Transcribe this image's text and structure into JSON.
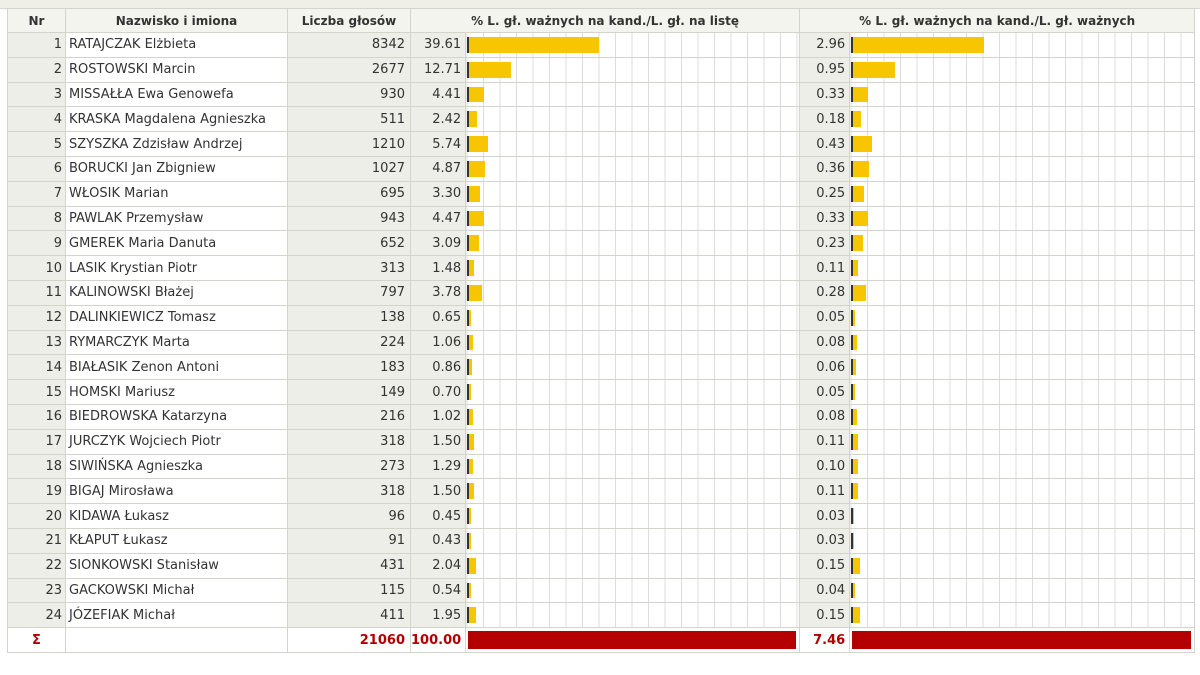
{
  "headers": {
    "nr": "Nr",
    "name": "Nazwisko i imiona",
    "votes": "Liczba głosów",
    "pct_list": "% L. gł. ważnych na kand./L. gł. na listę",
    "pct_valid": "% L. gł. ważnych na kand./L. gł. ważnych"
  },
  "colors": {
    "bar": "#f7c600",
    "total_bar": "#b40000",
    "total_text": "#b00000"
  },
  "rows": [
    {
      "nr": "1",
      "name": "RATAJCZAK Elżbieta",
      "votes": "8342",
      "pct_list": "39.61",
      "pct_valid": "2.96"
    },
    {
      "nr": "2",
      "name": "ROSTOWSKI Marcin",
      "votes": "2677",
      "pct_list": "12.71",
      "pct_valid": "0.95"
    },
    {
      "nr": "3",
      "name": "MISSAŁŁA Ewa Genowefa",
      "votes": "930",
      "pct_list": "4.41",
      "pct_valid": "0.33"
    },
    {
      "nr": "4",
      "name": "KRASKA Magdalena Agnieszka",
      "votes": "511",
      "pct_list": "2.42",
      "pct_valid": "0.18"
    },
    {
      "nr": "5",
      "name": "SZYSZKA Zdzisław Andrzej",
      "votes": "1210",
      "pct_list": "5.74",
      "pct_valid": "0.43"
    },
    {
      "nr": "6",
      "name": "BORUCKI Jan Zbigniew",
      "votes": "1027",
      "pct_list": "4.87",
      "pct_valid": "0.36"
    },
    {
      "nr": "7",
      "name": "WŁOSIK Marian",
      "votes": "695",
      "pct_list": "3.30",
      "pct_valid": "0.25"
    },
    {
      "nr": "8",
      "name": "PAWLAK Przemysław",
      "votes": "943",
      "pct_list": "4.47",
      "pct_valid": "0.33"
    },
    {
      "nr": "9",
      "name": "GMEREK Maria Danuta",
      "votes": "652",
      "pct_list": "3.09",
      "pct_valid": "0.23"
    },
    {
      "nr": "10",
      "name": "LASIK Krystian Piotr",
      "votes": "313",
      "pct_list": "1.48",
      "pct_valid": "0.11"
    },
    {
      "nr": "11",
      "name": "KALINOWSKI Błażej",
      "votes": "797",
      "pct_list": "3.78",
      "pct_valid": "0.28"
    },
    {
      "nr": "12",
      "name": "DALINKIEWICZ Tomasz",
      "votes": "138",
      "pct_list": "0.65",
      "pct_valid": "0.05"
    },
    {
      "nr": "13",
      "name": "RYMARCZYK Marta",
      "votes": "224",
      "pct_list": "1.06",
      "pct_valid": "0.08"
    },
    {
      "nr": "14",
      "name": "BIAŁASIK Zenon Antoni",
      "votes": "183",
      "pct_list": "0.86",
      "pct_valid": "0.06"
    },
    {
      "nr": "15",
      "name": "HOMSKI Mariusz",
      "votes": "149",
      "pct_list": "0.70",
      "pct_valid": "0.05"
    },
    {
      "nr": "16",
      "name": "BIEDROWSKA Katarzyna",
      "votes": "216",
      "pct_list": "1.02",
      "pct_valid": "0.08"
    },
    {
      "nr": "17",
      "name": "JURCZYK Wojciech Piotr",
      "votes": "318",
      "pct_list": "1.50",
      "pct_valid": "0.11"
    },
    {
      "nr": "18",
      "name": "SIWIŃSKA Agnieszka",
      "votes": "273",
      "pct_list": "1.29",
      "pct_valid": "0.10"
    },
    {
      "nr": "19",
      "name": "BIGAJ Mirosława",
      "votes": "318",
      "pct_list": "1.50",
      "pct_valid": "0.11"
    },
    {
      "nr": "20",
      "name": "KIDAWA Łukasz",
      "votes": "96",
      "pct_list": "0.45",
      "pct_valid": "0.03"
    },
    {
      "nr": "21",
      "name": "KŁAPUT Łukasz",
      "votes": "91",
      "pct_list": "0.43",
      "pct_valid": "0.03"
    },
    {
      "nr": "22",
      "name": "SIONKOWSKI Stanisław",
      "votes": "431",
      "pct_list": "2.04",
      "pct_valid": "0.15"
    },
    {
      "nr": "23",
      "name": "GACKOWSKI Michał",
      "votes": "115",
      "pct_list": "0.54",
      "pct_valid": "0.04"
    },
    {
      "nr": "24",
      "name": "JÓZEFIAK Michał",
      "votes": "411",
      "pct_list": "1.95",
      "pct_valid": "0.15"
    }
  ],
  "total": {
    "symbol": "Σ",
    "votes": "21060",
    "pct_list": "100.00",
    "pct_valid": "7.46"
  }
}
